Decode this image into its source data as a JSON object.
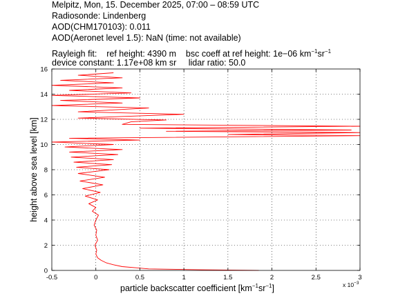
{
  "header": {
    "line1": "Melpitz, Mon, 15. December 2025, 07:00 – 08:59 UTC",
    "line2": "Radiosonde: Lindenberg",
    "line3": "AOD(CHM170103): 0.011",
    "line4": "AOD(Aeronet level 1.5): NaN   (time: not available)",
    "rayleigh_label": "Rayleigh fit:",
    "ref_height": "ref height: 4390 m",
    "bsc_coeff_prefix": "bsc coeff at ref height: 1e−06 km",
    "bsc_unit_exp1": "−1",
    "bsc_unit_sr": "sr",
    "bsc_unit_exp2": "−1",
    "device_constant": "device constant: 1.17e+08 km sr",
    "lidar_ratio": "lidar ratio: 50.0"
  },
  "axes": {
    "xlabel_prefix": "particle backscatter coefficient [km",
    "xlabel_exp1": "−1",
    "xlabel_sr": "sr",
    "xlabel_exp2": "−1",
    "xlabel_suffix": "]",
    "ylabel": "height above sea level [km]",
    "x_multiplier_base": "x 10",
    "x_multiplier_exp": "−3"
  },
  "colors": {
    "line": "#ff0000",
    "grid": "#000000",
    "background": "#ffffff"
  },
  "chart_data": {
    "type": "line",
    "series": [
      {
        "x_unit_scale": "1e-3 km-1 sr-1",
        "points": [
          [
            1.85,
            0.0
          ],
          [
            1.2,
            0.05
          ],
          [
            0.6,
            0.12
          ],
          [
            0.48,
            0.2
          ],
          [
            0.3,
            0.3
          ],
          [
            0.2,
            0.45
          ],
          [
            0.12,
            0.6
          ],
          [
            0.06,
            0.8
          ],
          [
            0.02,
            1.0
          ],
          [
            0.0,
            1.3
          ],
          [
            0.01,
            1.6
          ],
          [
            -0.01,
            2.0
          ],
          [
            0.02,
            2.4
          ],
          [
            0.0,
            2.8
          ],
          [
            0.01,
            3.2
          ],
          [
            -0.02,
            3.6
          ],
          [
            0.0,
            4.0
          ],
          [
            0.03,
            4.39
          ],
          [
            -0.04,
            4.7
          ],
          [
            0.0,
            5.0
          ],
          [
            -0.08,
            5.3
          ],
          [
            0.02,
            5.6
          ],
          [
            -0.12,
            5.9
          ],
          [
            0.05,
            6.2
          ],
          [
            -0.15,
            6.5
          ],
          [
            0.08,
            6.8
          ],
          [
            -0.18,
            7.1
          ],
          [
            0.1,
            7.4
          ],
          [
            -0.2,
            7.7
          ],
          [
            0.15,
            8.0
          ],
          [
            -0.22,
            8.2
          ],
          [
            0.18,
            8.4
          ],
          [
            -0.25,
            8.6
          ],
          [
            0.2,
            8.8
          ],
          [
            -0.28,
            9.0
          ],
          [
            0.25,
            9.2
          ],
          [
            -0.3,
            9.4
          ],
          [
            0.3,
            9.6
          ],
          [
            -0.35,
            9.8
          ],
          [
            0.2,
            10.0
          ],
          [
            -0.55,
            10.2
          ],
          [
            0.5,
            10.35
          ],
          [
            -0.3,
            10.5
          ],
          [
            3.0,
            10.7
          ],
          [
            1.5,
            10.8
          ],
          [
            3.0,
            10.95
          ],
          [
            0.8,
            11.05
          ],
          [
            2.9,
            11.15
          ],
          [
            0.5,
            11.3
          ],
          [
            3.0,
            11.45
          ],
          [
            0.3,
            11.6
          ],
          [
            0.4,
            11.8
          ],
          [
            0.8,
            11.95
          ],
          [
            -0.2,
            12.1
          ],
          [
            1.0,
            12.4
          ],
          [
            -0.2,
            12.6
          ],
          [
            0.6,
            12.9
          ],
          [
            -0.5,
            13.1
          ],
          [
            0.3,
            13.3
          ],
          [
            -0.4,
            13.5
          ],
          [
            0.5,
            13.7
          ],
          [
            -0.5,
            13.9
          ],
          [
            0.4,
            14.1
          ],
          [
            -0.3,
            14.3
          ],
          [
            0.3,
            14.5
          ],
          [
            -0.5,
            14.7
          ],
          [
            0.2,
            14.9
          ],
          [
            -0.4,
            15.1
          ],
          [
            0.3,
            15.3
          ],
          [
            -0.2,
            15.5
          ],
          [
            0.2,
            15.7
          ]
        ]
      }
    ],
    "xlim": [
      -0.5,
      3.0
    ],
    "ylim": [
      0,
      16
    ],
    "xticks": [
      "-0.5",
      "0",
      "0.5",
      "1",
      "1.5",
      "2",
      "2.5",
      "3"
    ],
    "yticks": [
      "0",
      "2",
      "4",
      "6",
      "8",
      "10",
      "12",
      "14",
      "16"
    ],
    "grid": "dotted"
  }
}
